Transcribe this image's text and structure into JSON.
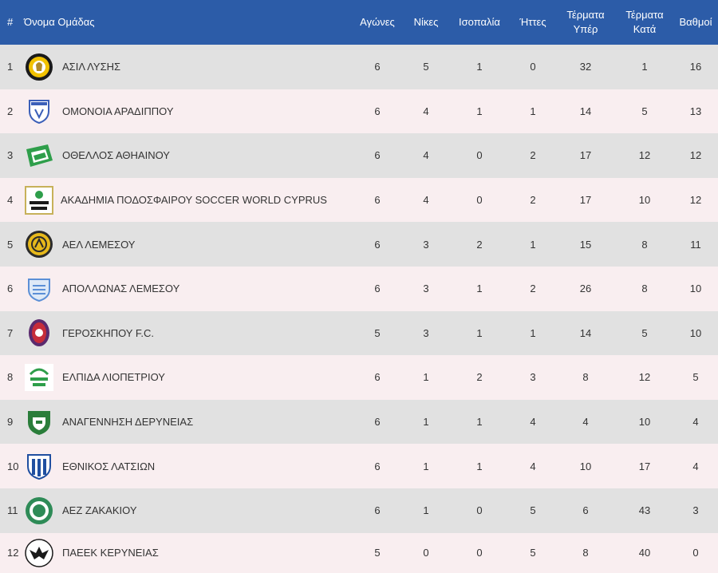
{
  "headers": {
    "rank": "#",
    "team": "Όνομα Ομάδας",
    "played": "Αγώνες",
    "wins": "Νίκες",
    "draws": "Ισοπαλία",
    "losses": "Ήττες",
    "goals_for_1": "Τέρματα",
    "goals_for_2": "Υπέρ",
    "goals_against_1": "Τέρματα",
    "goals_against_2": "Κατά",
    "points": "Βαθμοί"
  },
  "rows": [
    {
      "rank": "1",
      "team": "ΑΣΙΛ ΛΥΣΗΣ",
      "logo": "asil-lysis-logo-icon",
      "played": "6",
      "wins": "5",
      "draws": "1",
      "losses": "0",
      "gf": "32",
      "ga": "1",
      "points": "16"
    },
    {
      "rank": "2",
      "team": "ΟΜΟΝΟΙΑ ΑΡΑΔΙΠΠΟΥ",
      "logo": "omonoia-aradippou-logo-icon",
      "played": "6",
      "wins": "4",
      "draws": "1",
      "losses": "1",
      "gf": "14",
      "ga": "5",
      "points": "13"
    },
    {
      "rank": "3",
      "team": "ΟΘΕΛΛΟΣ ΑΘΗΑΙΝΟΥ",
      "logo": "othellos-athienou-logo-icon",
      "played": "6",
      "wins": "4",
      "draws": "0",
      "losses": "2",
      "gf": "17",
      "ga": "12",
      "points": "12"
    },
    {
      "rank": "4",
      "team": "ΑΚΑΔΗΜΙΑ ΠΟΔΟΣΦΑΙΡΟΥ SOCCER WORLD CYPRUS",
      "logo": "soccer-world-logo-icon",
      "played": "6",
      "wins": "4",
      "draws": "0",
      "losses": "2",
      "gf": "17",
      "ga": "10",
      "points": "12"
    },
    {
      "rank": "5",
      "team": "ΑΕΛ ΛΕΜΕΣΟΥ",
      "logo": "ael-limassol-logo-icon",
      "played": "6",
      "wins": "3",
      "draws": "2",
      "losses": "1",
      "gf": "15",
      "ga": "8",
      "points": "11"
    },
    {
      "rank": "6",
      "team": "ΑΠΟΛΛΩΝΑΣ ΛΕΜΕΣΟΥ",
      "logo": "apollon-limassol-logo-icon",
      "played": "6",
      "wins": "3",
      "draws": "1",
      "losses": "2",
      "gf": "26",
      "ga": "8",
      "points": "10"
    },
    {
      "rank": "7",
      "team": "ΓΕΡΟΣΚΗΠΟΥ F.C.",
      "logo": "geroskipou-logo-icon",
      "played": "5",
      "wins": "3",
      "draws": "1",
      "losses": "1",
      "gf": "14",
      "ga": "5",
      "points": "10"
    },
    {
      "rank": "8",
      "team": "ΕΛΠΙΔΑ ΛΙΟΠΕΤΡΙΟΥ",
      "logo": "elpida-liopetriou-logo-icon",
      "played": "6",
      "wins": "1",
      "draws": "2",
      "losses": "3",
      "gf": "8",
      "ga": "12",
      "points": "5"
    },
    {
      "rank": "9",
      "team": "ΑΝΑΓΕΝΝΗΣΗ ΔΕΡΥΝΕΙΑΣ",
      "logo": "anagennisi-deryneias-logo-icon",
      "played": "6",
      "wins": "1",
      "draws": "1",
      "losses": "4",
      "gf": "4",
      "ga": "10",
      "points": "4"
    },
    {
      "rank": "10",
      "team": "ΕΘΝΙΚΟΣ ΛΑΤΣΙΩΝ",
      "logo": "ethnikos-latsion-logo-icon",
      "played": "6",
      "wins": "1",
      "draws": "1",
      "losses": "4",
      "gf": "10",
      "ga": "17",
      "points": "4"
    },
    {
      "rank": "11",
      "team": "ΑΕΖ ΖΑΚΑΚΙΟΥ",
      "logo": "aez-zakakiou-logo-icon",
      "played": "6",
      "wins": "1",
      "draws": "0",
      "losses": "5",
      "gf": "6",
      "ga": "43",
      "points": "3"
    },
    {
      "rank": "12",
      "team": "ΠΑΕΕΚ ΚΕΡΥΝΕΙΑΣ",
      "logo": "paeek-kyreneia-logo-icon",
      "played": "5",
      "wins": "0",
      "draws": "0",
      "losses": "5",
      "gf": "8",
      "ga": "40",
      "points": "0"
    }
  ],
  "colors": {
    "header_bg": "#2c5ca8",
    "row_odd": "#e1e1e1",
    "row_even": "#f9eef0"
  }
}
